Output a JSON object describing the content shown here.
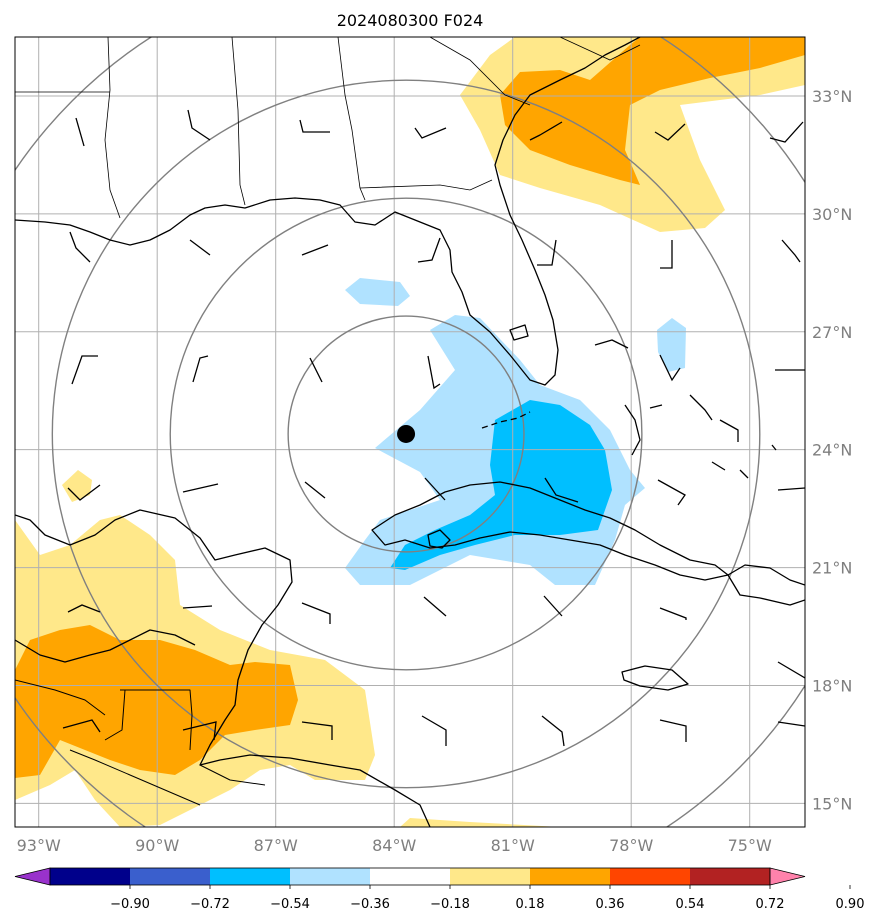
{
  "title": "2024080300 F024",
  "map": {
    "lon_range": [
      -93.6,
      -73.6
    ],
    "lat_range": [
      14.4,
      34.5
    ],
    "storm_center": {
      "lon": -83.7,
      "lat": 24.4
    },
    "range_rings_deg": [
      3,
      6,
      9,
      12
    ],
    "lon_ticks": [
      {
        "value": -93,
        "label": "93°W"
      },
      {
        "value": -90,
        "label": "90°W"
      },
      {
        "value": -87,
        "label": "87°W"
      },
      {
        "value": -84,
        "label": "84°W"
      },
      {
        "value": -81,
        "label": "81°W"
      },
      {
        "value": -78,
        "label": "78°W"
      },
      {
        "value": -75,
        "label": "75°W"
      }
    ],
    "lat_ticks": [
      {
        "value": 33,
        "label": "33°N"
      },
      {
        "value": 30,
        "label": "30°N"
      },
      {
        "value": 27,
        "label": "27°N"
      },
      {
        "value": 24,
        "label": "24°N"
      },
      {
        "value": 21,
        "label": "21°N"
      },
      {
        "value": 18,
        "label": "18°N"
      },
      {
        "value": 15,
        "label": "15°N"
      }
    ]
  },
  "colorbar": {
    "levels": [
      "−0.90",
      "−0.72",
      "−0.54",
      "−0.36",
      "−0.18",
      "0.18",
      "0.36",
      "0.54",
      "0.72",
      "0.90"
    ],
    "colors": [
      "#9932cc",
      "#00008b",
      "#3a5fcd",
      "#00bfff",
      "#b0e2ff",
      "#ffffff",
      "#ffe88a",
      "#ffa500",
      "#ff4500",
      "#b22222",
      "#ff82ab"
    ]
  },
  "colors": {
    "light_blue": "#b0e2ff",
    "deep_sky_blue": "#00bfff",
    "light_yellow": "#ffe88a",
    "orange": "#ffa500",
    "grid": "#b0b0b0",
    "ring": "#808080"
  }
}
